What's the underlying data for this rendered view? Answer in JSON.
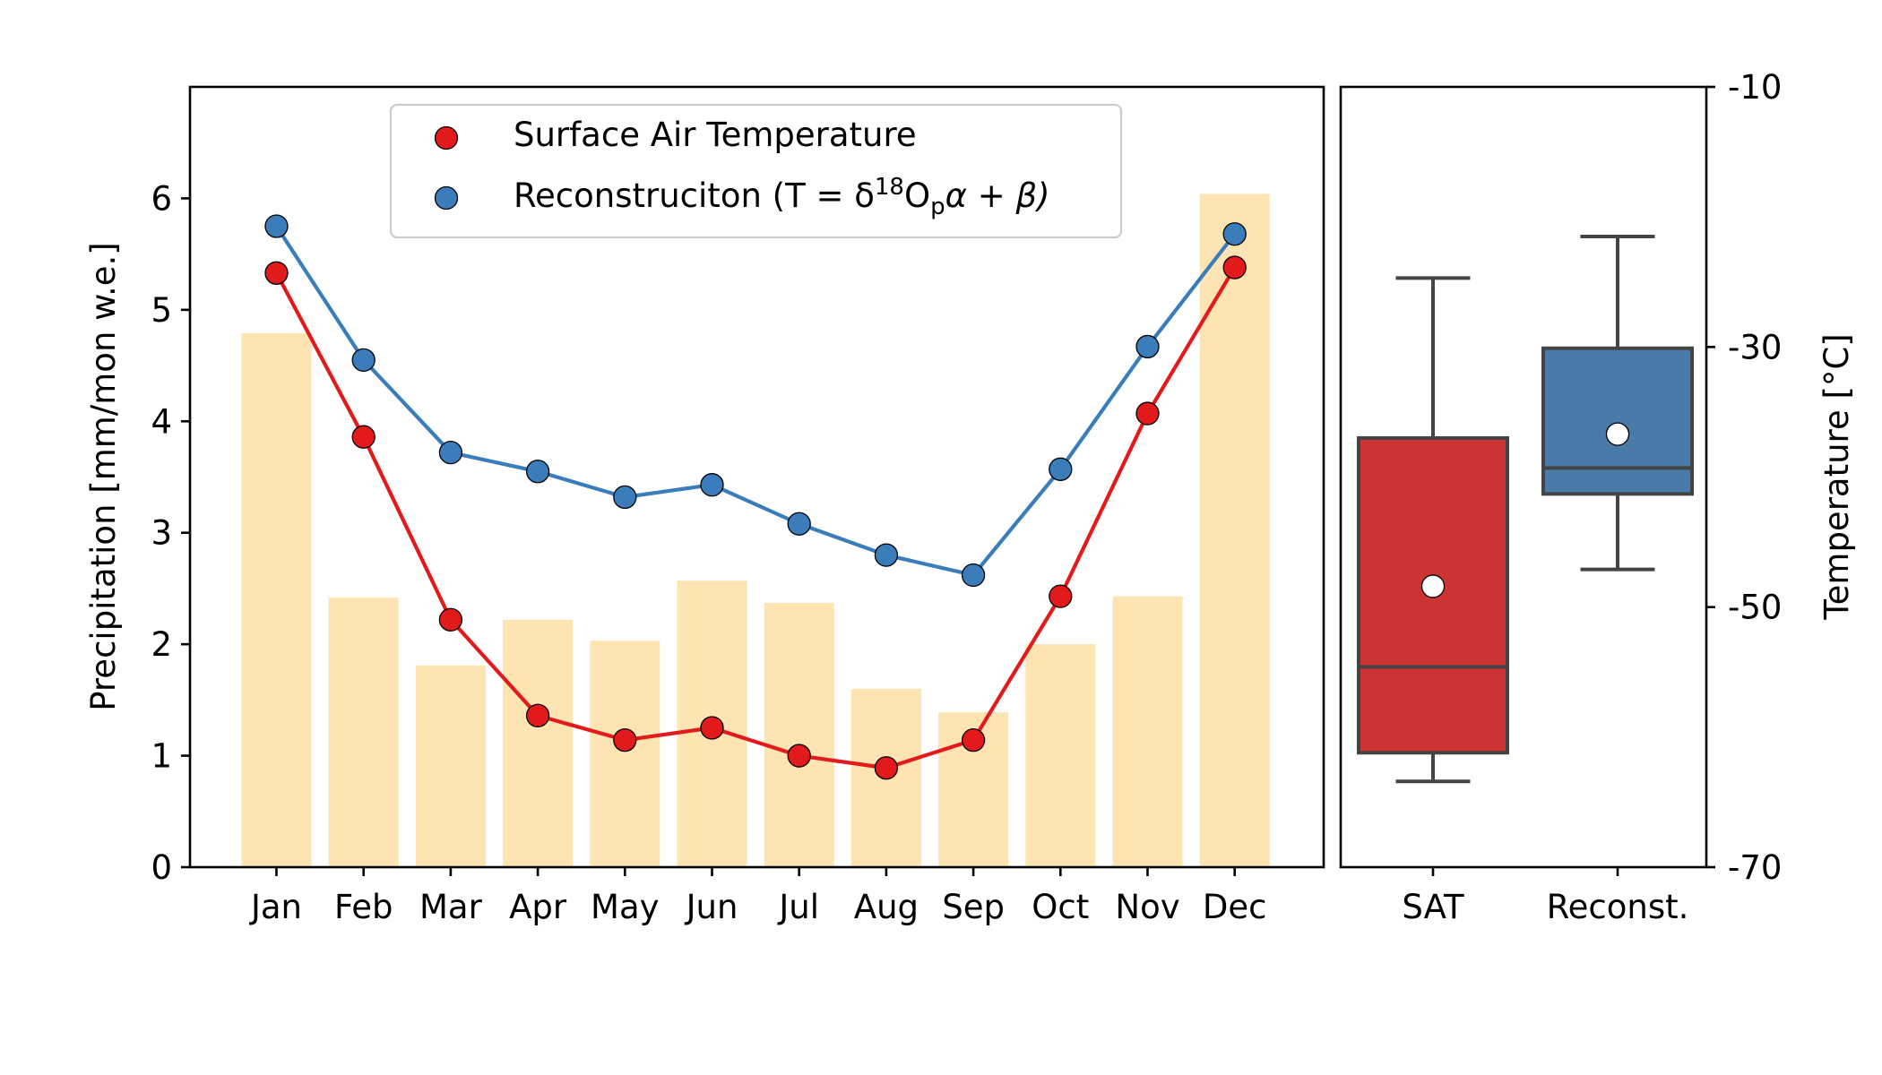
{
  "chart_data": [
    {
      "type": "bar+line",
      "categories": [
        "Jan",
        "Feb",
        "Mar",
        "Apr",
        "May",
        "Jun",
        "Jul",
        "Aug",
        "Sep",
        "Oct",
        "Nov",
        "Dec"
      ],
      "ylabel": "Precipitation [mm/mon w.e.]",
      "ylim": [
        0,
        7
      ],
      "yticks": [
        "0",
        "1",
        "2",
        "3",
        "4",
        "5",
        "6"
      ],
      "bars": {
        "color": "#fee4b3",
        "values": [
          4.79,
          2.42,
          1.81,
          2.22,
          2.03,
          2.57,
          2.37,
          1.6,
          1.39,
          2.0,
          2.43,
          6.04
        ]
      },
      "series": [
        {
          "name": "Surface Air Temperature",
          "color": "#e31a1c",
          "values": [
            5.33,
            3.86,
            2.22,
            1.36,
            1.14,
            1.25,
            1.0,
            0.89,
            1.14,
            2.43,
            4.07,
            5.38
          ]
        },
        {
          "name": "Reconstruciton",
          "color": "#3a7dba",
          "values": [
            5.75,
            4.55,
            3.72,
            3.55,
            3.32,
            3.43,
            3.08,
            2.8,
            2.62,
            3.57,
            4.67,
            5.68
          ]
        }
      ],
      "legend": {
        "placement": "top-center",
        "items": [
          {
            "label": "Surface Air Temperature"
          },
          {
            "label_prefix": "Reconstruciton (T = δ",
            "sup": "18",
            "label_mid": "O",
            "sub": "p",
            "label_suffix": "α + β)"
          }
        ]
      }
    },
    {
      "type": "box",
      "categories": [
        "SAT",
        "Reconst."
      ],
      "ylabel": "Temperature [°C]",
      "ylim": [
        -70,
        -10
      ],
      "yticks": [
        "-10",
        "-30",
        "-50",
        "-70"
      ],
      "boxes": [
        {
          "name": "SAT",
          "color": "#cc3333",
          "whisker_low": -63.4,
          "q1": -61.2,
          "median": -54.6,
          "q3": -37.0,
          "whisker_high": -24.7,
          "mean": -48.4
        },
        {
          "name": "Reconst.",
          "color": "#4a7aa8",
          "whisker_low": -47.1,
          "q1": -41.3,
          "median": -39.3,
          "q3": -30.1,
          "whisker_high": -21.5,
          "mean": -36.7
        }
      ]
    }
  ]
}
